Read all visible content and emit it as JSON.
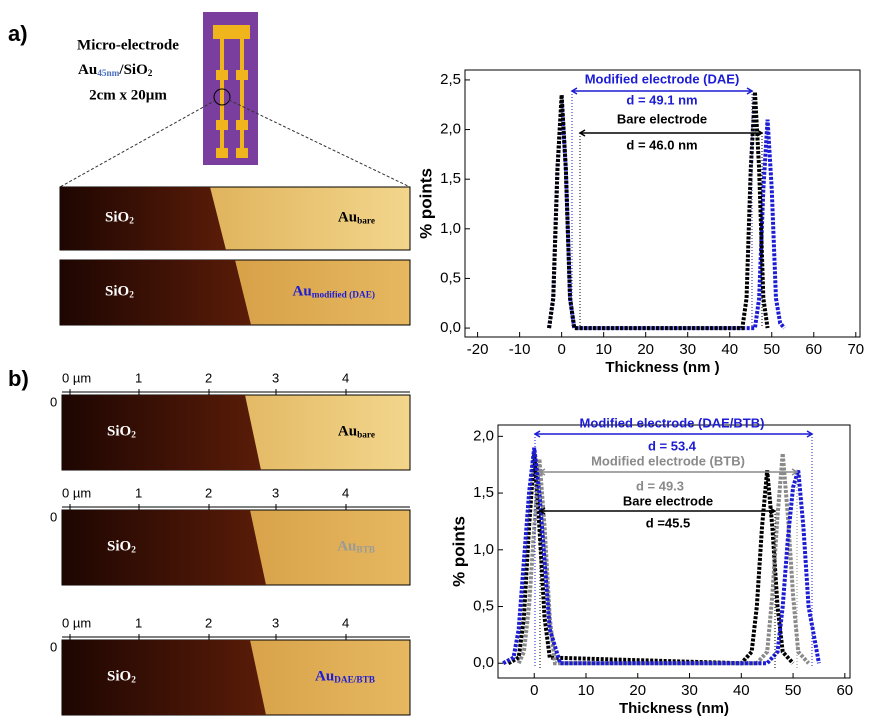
{
  "panel_labels": [
    "a)",
    "b)"
  ],
  "electrode": {
    "line1": "Micro-electrode",
    "au": "Au",
    "au_sub": "45nm",
    "sio": "/SiO",
    "sio_sub": "2",
    "line3": "2cm x 20µm"
  },
  "afm_a": [
    {
      "material": "SiO",
      "material_sub": "2",
      "metal": "Au",
      "metal_sub": "bare"
    },
    {
      "material": "SiO",
      "material_sub": "2",
      "metal": "Au",
      "metal_sub": "modified (DAE)"
    }
  ],
  "afm_b": {
    "axis_ticks": [
      "0 µm",
      "1",
      "2",
      "3",
      "4"
    ],
    "y_tick": "0",
    "images": [
      {
        "material": "SiO",
        "material_sub": "2",
        "metal": "Au",
        "metal_sub": "bare"
      },
      {
        "material": "SiO",
        "material_sub": "2",
        "metal": "Au",
        "metal_sub": "BTB"
      },
      {
        "material": "SiO",
        "material_sub": "2",
        "metal": "Au",
        "metal_sub": "DAE/BTB"
      }
    ]
  },
  "chart_data": [
    {
      "type": "line",
      "x_label": "Thickness (nm )",
      "y_label": "% points",
      "xlim": [
        -23,
        71
      ],
      "ylim": [
        -0.09,
        2.6
      ],
      "xticks": [
        -20,
        -10,
        0,
        10,
        20,
        30,
        40,
        50,
        60,
        70
      ],
      "yticks": [
        {
          "value": 0,
          "label": "0,0"
        },
        {
          "value": 0.5,
          "label": "0,5"
        },
        {
          "value": 1,
          "label": "1,0"
        },
        {
          "value": 1.5,
          "label": "1,5"
        },
        {
          "value": 2,
          "label": "2,0"
        },
        {
          "value": 2.5,
          "label": "2,5"
        }
      ],
      "annotations": [
        {
          "text": "Modified electrode (DAE)",
          "color": "#1c1cd4"
        },
        {
          "text": "d = 49.1 nm",
          "color": "#1c1cd4"
        },
        {
          "text": "Bare electrode",
          "color": "#000000"
        },
        {
          "text": "d = 46.0 nm",
          "color": "#000000"
        }
      ],
      "series": [
        {
          "color": "#1c1cd4",
          "x": [
            -3,
            -2,
            -1,
            0,
            1,
            2,
            3,
            46,
            47,
            48,
            49,
            50,
            51,
            52,
            53
          ],
          "values": [
            0,
            0.3,
            1.6,
            2.3,
            1.6,
            0.3,
            0,
            0,
            0.3,
            1.4,
            2.1,
            1.4,
            0.3,
            0.05,
            0
          ]
        },
        {
          "color": "#000000",
          "x": [
            -3,
            -2,
            -1,
            0,
            1,
            2,
            3,
            43,
            44,
            45,
            46,
            47,
            48,
            49
          ],
          "values": [
            0,
            0.3,
            1.6,
            2.35,
            1.6,
            0.3,
            0,
            0,
            0.3,
            1.6,
            2.38,
            1.6,
            0.3,
            0
          ]
        }
      ]
    },
    {
      "type": "line",
      "x_label": "Thickness (nm)",
      "y_label": "% points",
      "xlim": [
        -7,
        61
      ],
      "ylim": [
        -0.13,
        2.1
      ],
      "xticks": [
        0,
        10,
        20,
        30,
        40,
        50,
        60
      ],
      "yticks": [
        {
          "value": 0,
          "label": "0,0"
        },
        {
          "value": 0.5,
          "label": "0,5"
        },
        {
          "value": 1,
          "label": "1,0"
        },
        {
          "value": 1.5,
          "label": "1,5"
        },
        {
          "value": 2,
          "label": "2,0"
        }
      ],
      "annotations": [
        {
          "text": "Modified electrode (DAE/BTB)",
          "color": "#1c1cd4"
        },
        {
          "text": "d = 53.4",
          "color": "#1c1cd4"
        },
        {
          "text": "Modified electrode (BTB)",
          "color": "#8a8a8a"
        },
        {
          "text": "d = 49.3",
          "color": "#8a8a8a"
        },
        {
          "text": "Bare electrode",
          "color": "#000000"
        },
        {
          "text": "d =45.5",
          "color": "#000000"
        }
      ],
      "series": [
        {
          "color": "#000000",
          "x": [
            -5,
            -3,
            -2,
            -1,
            0,
            1,
            2,
            3,
            40,
            42,
            43,
            44,
            45,
            46,
            47,
            48,
            50
          ],
          "values": [
            0,
            0.05,
            0.4,
            1.2,
            1.85,
            1.2,
            0.4,
            0.05,
            0,
            0.1,
            0.5,
            1.2,
            1.7,
            1.2,
            0.5,
            0.1,
            0
          ]
        },
        {
          "color": "#8a8a8a",
          "x": [
            -3,
            -2,
            -1,
            0,
            1,
            2,
            3,
            4,
            43,
            45,
            46,
            47,
            48,
            49,
            50,
            51,
            53
          ],
          "values": [
            0,
            0.1,
            0.5,
            1.2,
            1.8,
            1.2,
            0.4,
            0,
            0,
            0.1,
            0.6,
            1.3,
            1.85,
            1.3,
            0.6,
            0.1,
            0
          ]
        },
        {
          "color": "#1c1cd4",
          "x": [
            -6,
            -4,
            -3,
            -2,
            -1,
            0,
            1,
            2,
            3,
            5,
            45,
            47,
            48,
            49,
            50,
            51,
            52,
            53,
            55
          ],
          "values": [
            0,
            0.05,
            0.3,
            0.9,
            1.5,
            1.9,
            1.5,
            0.9,
            0.3,
            0,
            0,
            0.1,
            0.5,
            1.1,
            1.55,
            1.7,
            1.2,
            0.5,
            0
          ]
        }
      ]
    }
  ]
}
